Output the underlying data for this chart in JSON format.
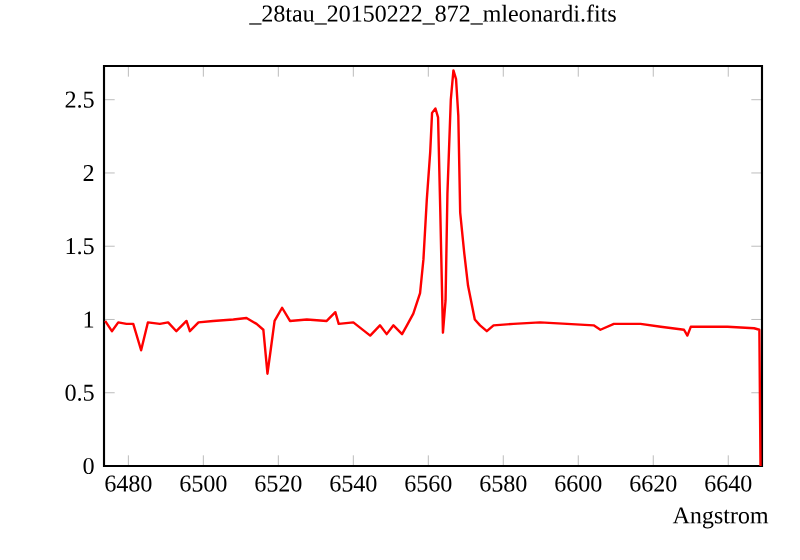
{
  "chart_data": {
    "type": "line",
    "title": "_28tau_20150222_872_mleonardi.fits",
    "xlabel": "Angstrom",
    "xlim": [
      6473.5,
      6649
    ],
    "ylim": [
      0,
      2.73
    ],
    "xticks": [
      6480,
      6500,
      6520,
      6540,
      6560,
      6580,
      6600,
      6620,
      6640
    ],
    "yticks": [
      0,
      0.5,
      1,
      1.5,
      2,
      2.5
    ],
    "line_style": "solid",
    "series": [
      {
        "color": "#ff0000",
        "x": [
          6473.8,
          6475.6,
          6477.3,
          6479.5,
          6481.3,
          6483.4,
          6485.2,
          6488.4,
          6490.6,
          6492.8,
          6495.5,
          6496.4,
          6498.7,
          6502.6,
          6508,
          6511.5,
          6514.2,
          6516,
          6517.1,
          6518,
          6519,
          6521,
          6523.1,
          6527.6,
          6532.9,
          6535.2,
          6536.1,
          6540,
          6544.5,
          6547.1,
          6548.9,
          6550.7,
          6553,
          6554.3,
          6556,
          6557.8,
          6558.7,
          6559.6,
          6560.5,
          6561,
          6561.9,
          6562.6,
          6563.2,
          6563.9,
          6564.6,
          6565.1,
          6566,
          6566.7,
          6567.4,
          6568,
          6568.5,
          6569.6,
          6570.6,
          6572.4,
          6573.8,
          6575.6,
          6577.4,
          6582.7,
          6589.8,
          6597,
          6604.1,
          6605.9,
          6609.5,
          6616.6,
          6622,
          6628.2,
          6629.1,
          6630,
          6639.8,
          6646.9,
          6648.3,
          6648.6
        ],
        "values": [
          0.99,
          0.92,
          0.98,
          0.97,
          0.97,
          0.79,
          0.98,
          0.97,
          0.98,
          0.92,
          0.99,
          0.92,
          0.98,
          0.99,
          1.0,
          1.01,
          0.97,
          0.93,
          0.63,
          0.8,
          0.99,
          1.08,
          0.99,
          1.0,
          0.99,
          1.05,
          0.97,
          0.98,
          0.89,
          0.96,
          0.9,
          0.96,
          0.9,
          0.96,
          1.04,
          1.18,
          1.41,
          1.82,
          2.14,
          2.41,
          2.44,
          2.38,
          1.73,
          0.91,
          1.13,
          1.86,
          2.5,
          2.7,
          2.64,
          2.39,
          1.73,
          1.45,
          1.23,
          1.0,
          0.96,
          0.92,
          0.96,
          0.97,
          0.98,
          0.97,
          0.96,
          0.93,
          0.97,
          0.97,
          0.95,
          0.93,
          0.89,
          0.95,
          0.95,
          0.94,
          0.93,
          0.0
        ]
      }
    ]
  }
}
